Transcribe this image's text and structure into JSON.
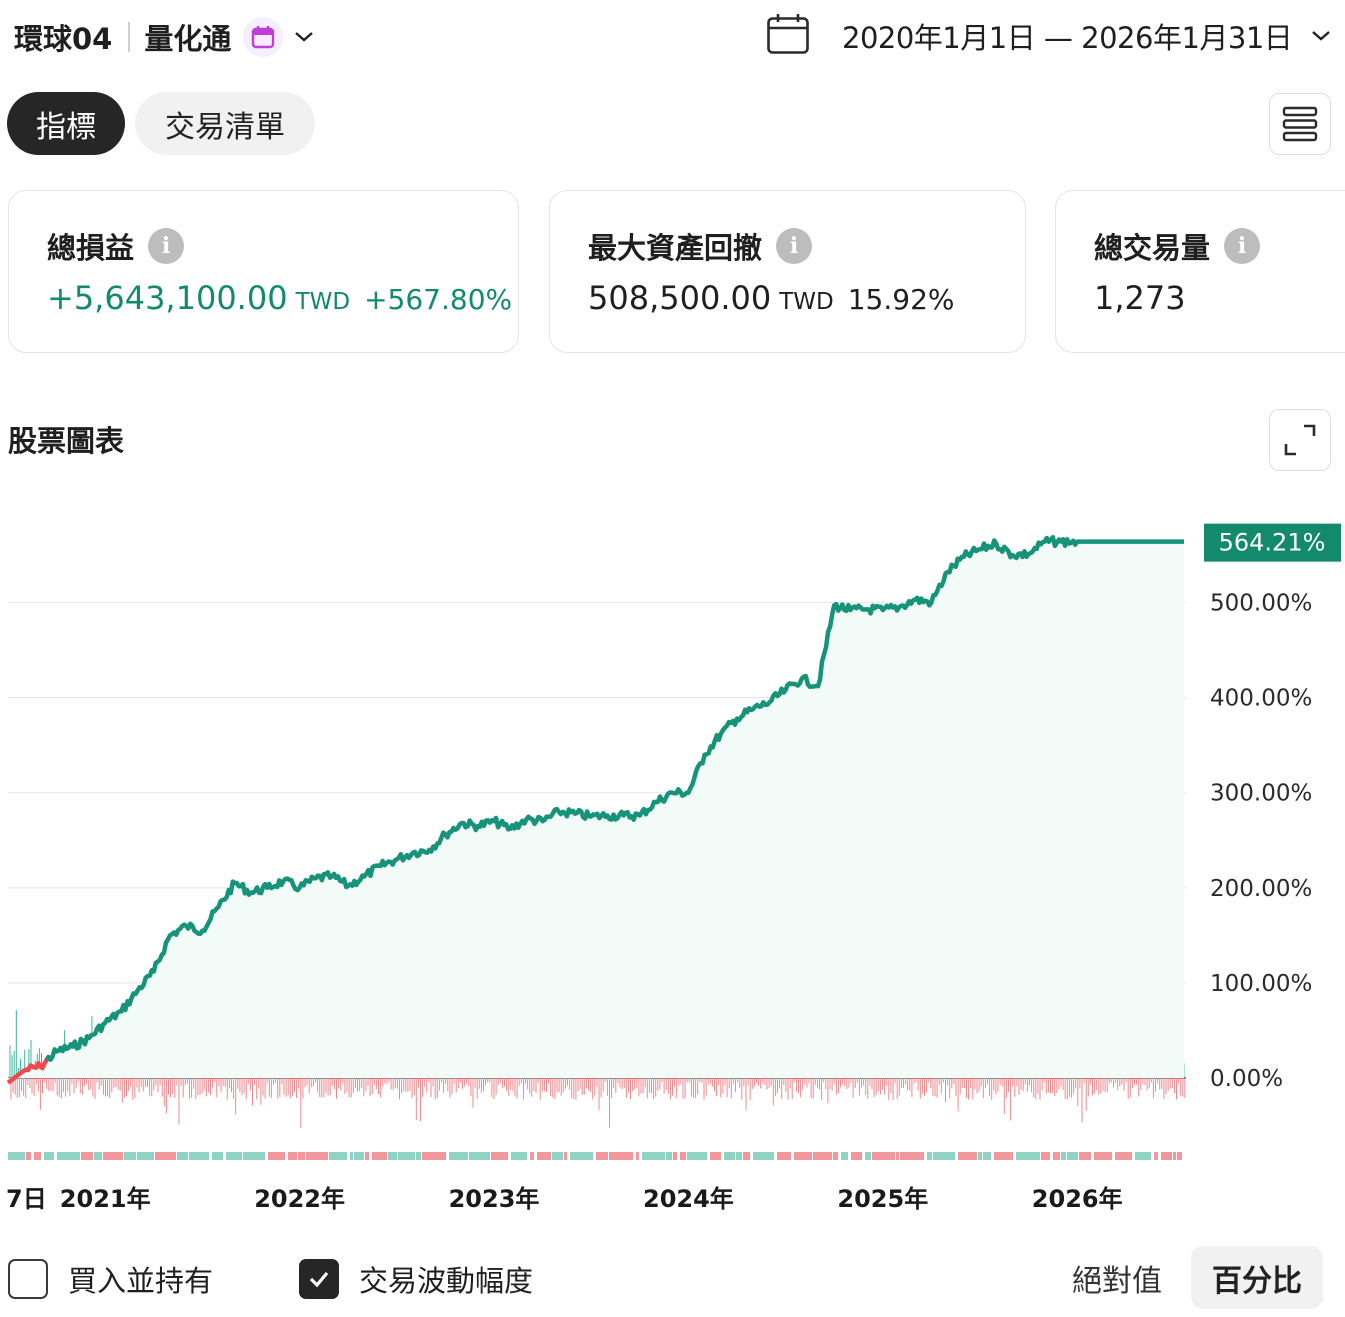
{
  "header": {
    "account_name": "環球04",
    "strategy_name": "量化通",
    "calendar_badge_icon": "calendar-icon",
    "date_range": "2020年1月1日 — 2026年1月31日"
  },
  "tabs": [
    {
      "label": "指標",
      "active": true
    },
    {
      "label": "交易清單",
      "active": false
    }
  ],
  "cards": {
    "total_pnl": {
      "label": "總損益",
      "value": "+5,643,100.00",
      "unit": "TWD",
      "pct": "+567.80%"
    },
    "max_drawdown": {
      "label": "最大資產回撤",
      "value": "508,500.00",
      "unit": "TWD",
      "pct": "15.92%"
    },
    "total_trades": {
      "label": "總交易量",
      "value": "1,273"
    }
  },
  "chart_section": {
    "title": "股票圖表"
  },
  "colors": {
    "accent_green": "#138a6b",
    "line_green": "#17937a",
    "negative_red": "#f0484e",
    "bar_green": "#3fb59b",
    "bar_red": "#ee8a8e"
  },
  "chart_data": {
    "type": "line",
    "y_unit": "%",
    "ylim": [
      -30,
      580
    ],
    "y_ticks": [
      "500.00%",
      "400.00%",
      "300.00%",
      "200.00%",
      "100.00%",
      "0.00%"
    ],
    "y_tick_values": [
      500,
      400,
      300,
      200,
      100,
      0
    ],
    "x_tick_labels": [
      "7日",
      "2021年",
      "2022年",
      "2023年",
      "2024年",
      "2025年",
      "2026年"
    ],
    "x_tick_dates": [
      "2020-07",
      "2021-01",
      "2022-01",
      "2023-01",
      "2024-01",
      "2025-01",
      "2026-01"
    ],
    "last_value_label": "564.21%",
    "series": [
      {
        "type": "line",
        "x": [
          "2020-07",
          "2020-08",
          "2020-09",
          "2020-10",
          "2020-11",
          "2020-12",
          "2021-01",
          "2021-02",
          "2021-03",
          "2021-04",
          "2021-05",
          "2021-06",
          "2021-07",
          "2021-08",
          "2021-09",
          "2021-10",
          "2021-11",
          "2021-12",
          "2022-01",
          "2022-02",
          "2022-03",
          "2022-04",
          "2022-05",
          "2022-06",
          "2022-07",
          "2022-08",
          "2022-09",
          "2022-10",
          "2022-11",
          "2022-12",
          "2023-01",
          "2023-02",
          "2023-03",
          "2023-04",
          "2023-05",
          "2023-06",
          "2023-07",
          "2023-08",
          "2023-09",
          "2023-10",
          "2023-11",
          "2023-12",
          "2024-01",
          "2024-02",
          "2024-03",
          "2024-04",
          "2024-05",
          "2024-06",
          "2024-07",
          "2024-08",
          "2024-09",
          "2024-10",
          "2024-11",
          "2024-12",
          "2025-01",
          "2025-02",
          "2025-03",
          "2025-04",
          "2025-05",
          "2025-06",
          "2025-07",
          "2025-08",
          "2025-09",
          "2025-10",
          "2025-11",
          "2025-12",
          "2026-01"
        ],
        "values": [
          -5,
          8,
          12,
          28,
          33,
          42,
          58,
          70,
          92,
          112,
          150,
          160,
          155,
          180,
          205,
          195,
          200,
          207,
          200,
          210,
          212,
          202,
          212,
          223,
          230,
          237,
          240,
          256,
          268,
          265,
          270,
          262,
          272,
          270,
          280,
          278,
          275,
          276,
          276,
          276,
          290,
          300,
          300,
          340,
          362,
          378,
          388,
          395,
          408,
          420,
          412,
          497,
          492,
          493,
          492,
          495,
          503,
          500,
          532,
          548,
          556,
          562,
          550,
          551,
          564,
          564,
          564
        ]
      }
    ],
    "grid": true,
    "legend": "none"
  },
  "options": {
    "buy_and_hold": {
      "label": "買入並持有",
      "checked": false
    },
    "trade_volatility": {
      "label": "交易波動幅度",
      "checked": true
    }
  },
  "toggle": {
    "absolute_label": "絕對值",
    "percent_label": "百分比",
    "selected": "percent"
  }
}
